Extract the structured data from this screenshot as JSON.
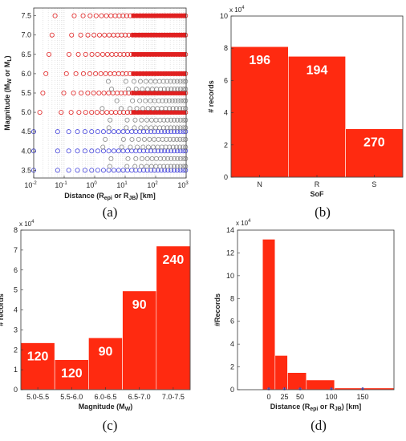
{
  "chart_data": [
    {
      "type": "scatter",
      "panel_label": "(a)",
      "title": "",
      "xlabel": "Distance (R",
      "xlabel_sub1": "epi",
      "xlabel_mid": " or R",
      "xlabel_sub2": "JB",
      "xlabel_end": ") [km]",
      "ylabel": "Magnitude (M",
      "ylabel_sub1": "W",
      "ylabel_mid": " or M",
      "ylabel_sub2": "L",
      "ylabel_end": ")",
      "xscale": "log",
      "xlim": [
        0.01,
        1000
      ],
      "ylim": [
        3.3,
        7.7
      ],
      "xtick_labels": [
        "10",
        "10",
        "10",
        "10",
        "10",
        "10"
      ],
      "xtick_exps": [
        "-2",
        "-1",
        "0",
        "1",
        "2",
        "3"
      ],
      "yticks": [
        "3.5",
        "4.0",
        "4.5",
        "5.0",
        "5.5",
        "6.0",
        "6.5",
        "7.0",
        "7.5"
      ],
      "grid": true,
      "series": [
        {
          "color": "#e02020",
          "magnitudes": [
            5.0,
            5.5,
            6.0,
            6.5,
            7.0,
            7.5
          ]
        },
        {
          "color": "#4444dd",
          "magnitudes": [
            3.5,
            4.0,
            4.5
          ]
        },
        {
          "color": "#888888",
          "magnitudes": [
            3.6,
            3.8,
            4.1,
            4.3,
            4.6,
            4.8,
            5.1,
            5.3,
            5.6,
            5.8
          ]
        }
      ]
    },
    {
      "type": "bar",
      "panel_label": "(b)",
      "categories": [
        "N",
        "R",
        "S"
      ],
      "values": [
        81000,
        75000,
        30000
      ],
      "bar_labels": [
        "196",
        "194",
        "270"
      ],
      "xlabel": "SoF",
      "ylabel": "# records",
      "ylim": [
        0,
        100000
      ],
      "yticks": [
        "0",
        "2",
        "4",
        "6",
        "8",
        "10"
      ],
      "y_multiplier": "x 10",
      "y_multiplier_exp": "4",
      "color": "#ff2a10"
    },
    {
      "type": "bar",
      "panel_label": "(c)",
      "categories": [
        "5.0-5.5",
        "5.5-6.0",
        "6.0-6.5",
        "6.5-7.0",
        "7.0-7.5"
      ],
      "values": [
        23500,
        15000,
        26000,
        49500,
        72000
      ],
      "bar_labels": [
        "120",
        "120",
        "90",
        "90",
        "240"
      ],
      "xlabel": "Magnitude (M",
      "xlabel_sub": "W",
      "xlabel_end": ")",
      "ylabel": "# records",
      "ylim": [
        0,
        80000
      ],
      "yticks": [
        "0",
        "1",
        "2",
        "3",
        "4",
        "5",
        "6",
        "7",
        "8"
      ],
      "y_multiplier": "x 10",
      "y_multiplier_exp": "4",
      "color": "#ff2a10"
    },
    {
      "type": "bar",
      "panel_label": "(d)",
      "bins": [
        [
          -10,
          10
        ],
        [
          10,
          30
        ],
        [
          30,
          60
        ],
        [
          60,
          105
        ],
        [
          105,
          200
        ]
      ],
      "values": [
        132000,
        30000,
        15000,
        8500,
        1500
      ],
      "xlabel": "Distance (R",
      "xlabel_sub1": "epi",
      "xlabel_mid": " or R",
      "xlabel_sub2": "JB",
      "xlabel_end": ") [km]",
      "ylabel": "#Records",
      "xlim": [
        -50,
        200
      ],
      "ylim": [
        0,
        140000
      ],
      "xticks": [
        "0",
        "25",
        "50",
        "100",
        "150"
      ],
      "xtick_values": [
        0,
        25,
        50,
        100,
        150
      ],
      "yticks": [
        "0",
        "2",
        "4",
        "6",
        "8",
        "10",
        "12",
        "14"
      ],
      "y_multiplier": "x 10",
      "y_multiplier_exp": "4",
      "color": "#ff2a10",
      "marker_color": "#6a5acd"
    }
  ]
}
